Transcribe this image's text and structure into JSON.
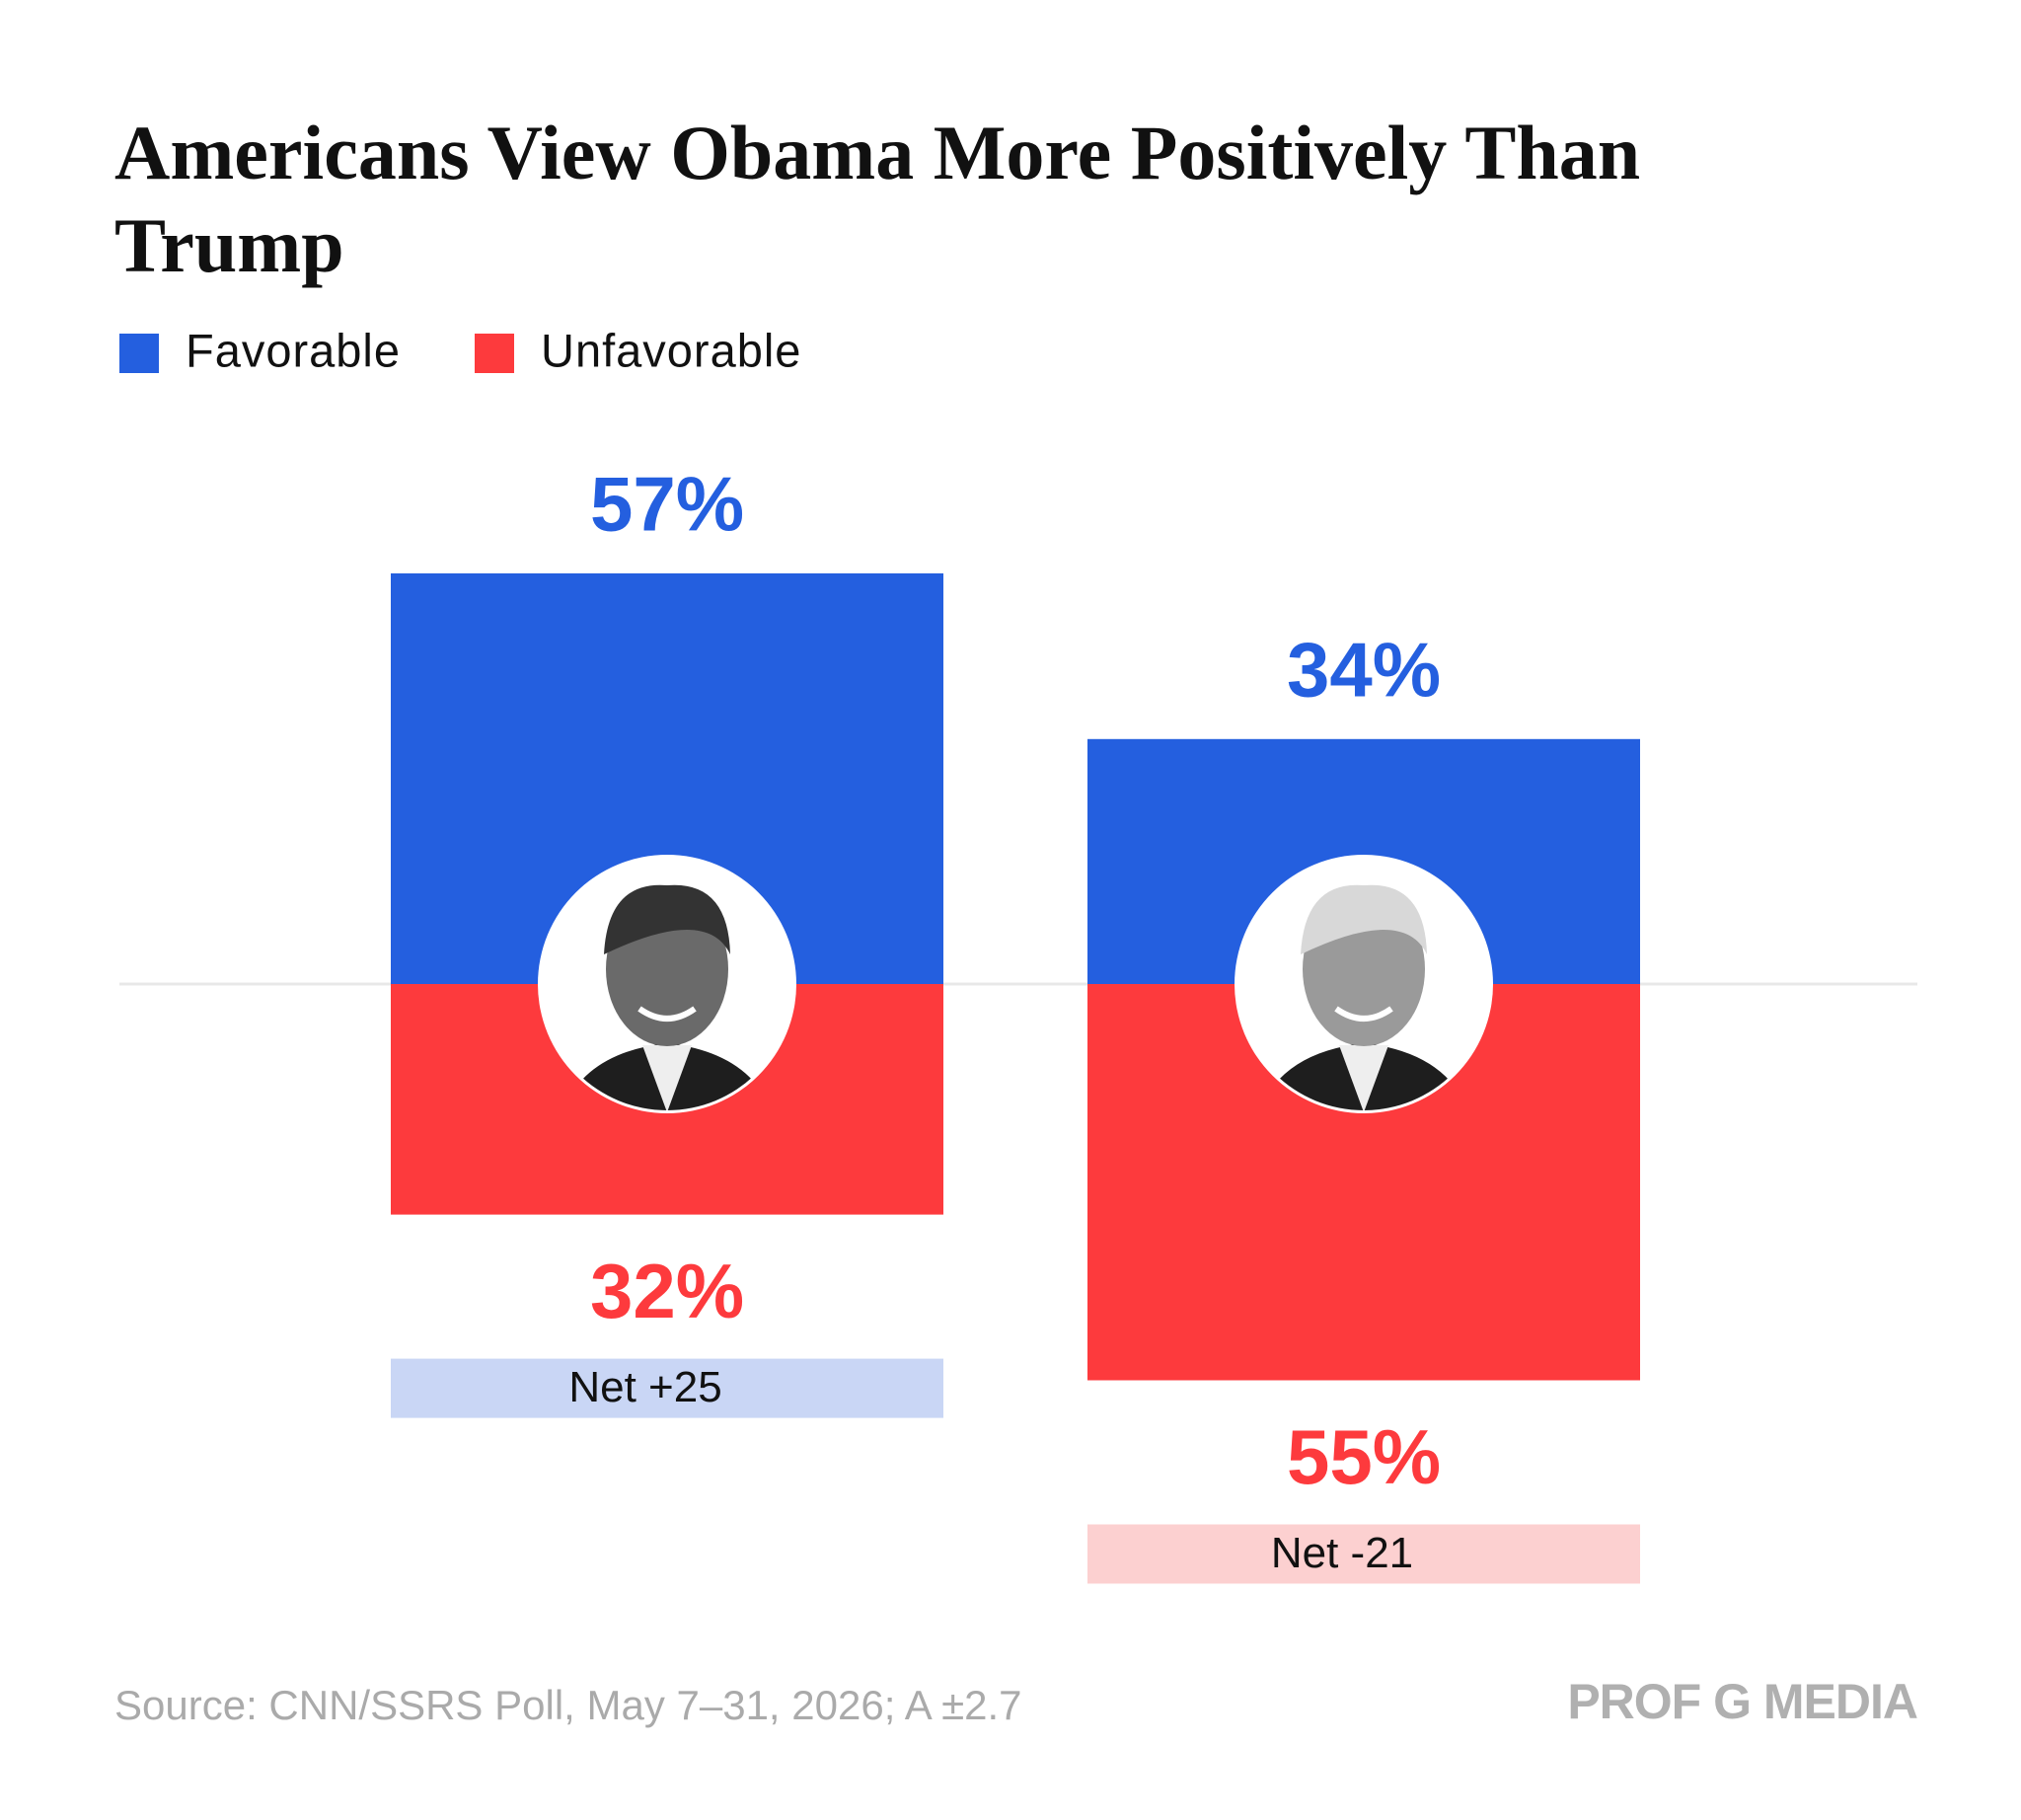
{
  "chart_data": {
    "type": "bar",
    "title": "Americans View Obama More Positively Than Trump",
    "categories": [
      null,
      null
    ],
    "series": [
      {
        "name": "Favorable",
        "color": "#245fdf",
        "values": [
          57,
          34
        ],
        "value_labels": [
          "57%",
          "34%"
        ]
      },
      {
        "name": "Unfavorable",
        "color": "#fd3a3d",
        "values": [
          32,
          55
        ],
        "value_labels": [
          "32%",
          "55%"
        ]
      }
    ],
    "annotations": [
      "Net +25",
      "Net -21"
    ],
    "annotation_colors": [
      "#c9d6f5",
      "#fcd0d0"
    ],
    "source": "Source: CNN/SSRS Poll, May 7–31, 2026; A ±2.7",
    "brand": "PROF G MEDIA"
  }
}
